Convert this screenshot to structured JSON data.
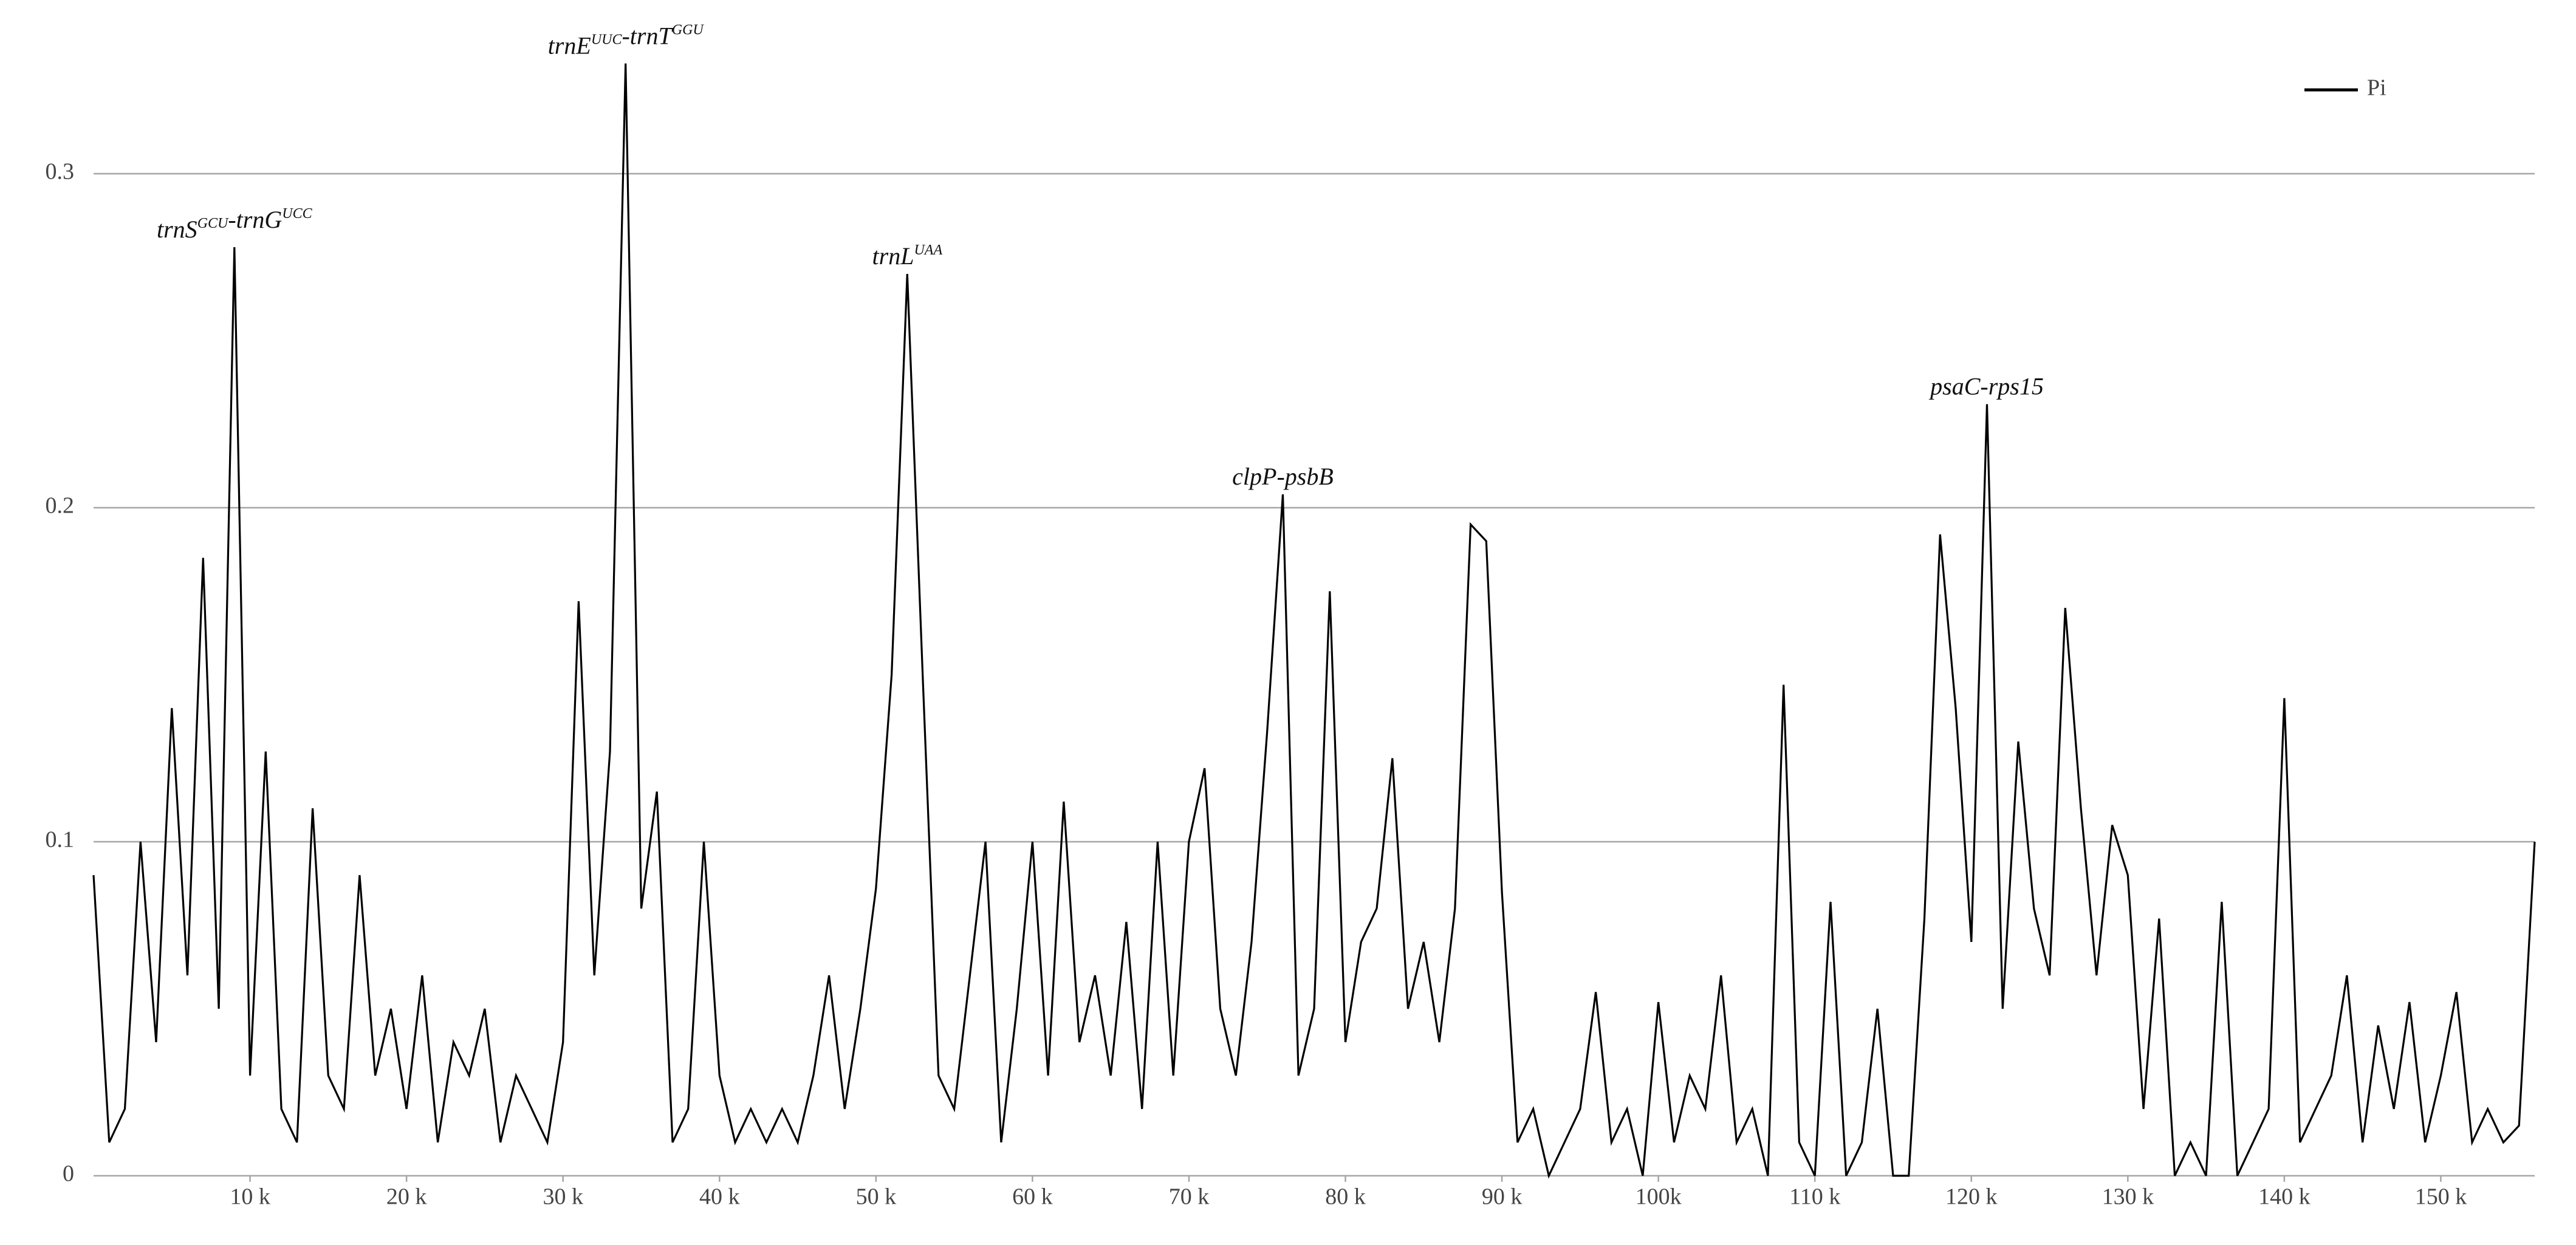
{
  "chart_data": {
    "type": "line",
    "x": [
      0,
      1,
      2,
      3,
      4,
      5,
      6,
      7,
      8,
      9,
      10,
      11,
      12,
      13,
      14,
      15,
      16,
      17,
      18,
      19,
      20,
      21,
      22,
      23,
      24,
      25,
      26,
      27,
      28,
      29,
      30,
      31,
      32,
      33,
      34,
      35,
      36,
      37,
      38,
      39,
      40,
      41,
      42,
      43,
      44,
      45,
      46,
      47,
      48,
      49,
      50,
      51,
      52,
      53,
      54,
      55,
      56,
      57,
      58,
      59,
      60,
      61,
      62,
      63,
      64,
      65,
      66,
      67,
      68,
      69,
      70,
      71,
      72,
      73,
      74,
      75,
      76,
      77,
      78,
      79,
      80,
      81,
      82,
      83,
      84,
      85,
      86,
      87,
      88,
      89,
      90,
      91,
      92,
      93,
      94,
      95,
      96,
      97,
      98,
      99,
      100,
      101,
      102,
      103,
      104,
      105,
      106,
      107,
      108,
      109,
      110,
      111,
      112,
      113,
      114,
      115,
      116,
      117,
      118,
      119,
      120,
      121,
      122,
      123,
      124,
      125,
      126,
      127,
      128,
      129,
      130,
      131,
      132,
      133,
      134,
      135,
      136,
      137,
      138,
      139,
      140,
      141,
      142,
      143,
      144,
      145,
      146,
      147,
      148,
      149,
      150,
      151,
      152,
      153,
      154,
      155,
      156
    ],
    "series": [
      {
        "name": "Pi",
        "color": "#000000",
        "values": [
          0.09,
          0.01,
          0.02,
          0.1,
          0.04,
          0.14,
          0.06,
          0.185,
          0.05,
          0.278,
          0.03,
          0.127,
          0.02,
          0.01,
          0.11,
          0.03,
          0.02,
          0.09,
          0.03,
          0.05,
          0.02,
          0.06,
          0.01,
          0.04,
          0.03,
          0.05,
          0.01,
          0.03,
          0.02,
          0.01,
          0.04,
          0.172,
          0.06,
          0.127,
          0.333,
          0.08,
          0.115,
          0.01,
          0.02,
          0.1,
          0.03,
          0.01,
          0.02,
          0.01,
          0.02,
          0.01,
          0.03,
          0.06,
          0.02,
          0.05,
          0.086,
          0.15,
          0.27,
          0.148,
          0.03,
          0.02,
          0.06,
          0.1,
          0.01,
          0.05,
          0.1,
          0.03,
          0.112,
          0.04,
          0.06,
          0.03,
          0.076,
          0.02,
          0.1,
          0.03,
          0.1,
          0.122,
          0.05,
          0.03,
          0.07,
          0.133,
          0.204,
          0.03,
          0.05,
          0.175,
          0.04,
          0.07,
          0.08,
          0.125,
          0.05,
          0.07,
          0.04,
          0.08,
          0.195,
          0.19,
          0.085,
          0.01,
          0.02,
          0,
          0.01,
          0.02,
          0.055,
          0.01,
          0.02,
          0,
          0.052,
          0.01,
          0.03,
          0.02,
          0.06,
          0.01,
          0.02,
          0,
          0.147,
          0.01,
          0,
          0.082,
          0,
          0.01,
          0.05,
          0,
          0,
          0.077,
          0.192,
          0.14,
          0.07,
          0.231,
          0.05,
          0.13,
          0.08,
          0.06,
          0.17,
          0.11,
          0.06,
          0.105,
          0.09,
          0.02,
          0.077,
          0,
          0.01,
          0,
          0.082,
          0,
          0.01,
          0.02,
          0.143,
          0.01,
          0.02,
          0.03,
          0.06,
          0.01,
          0.045,
          0.02,
          0.052,
          0.01,
          0.03,
          0.055,
          0.01,
          0.02,
          0.01,
          0.015,
          0.1
        ]
      }
    ],
    "xlim": [
      0,
      156
    ],
    "xticks": [
      {
        "value": 10,
        "label": "10 k"
      },
      {
        "value": 20,
        "label": "20 k"
      },
      {
        "value": 30,
        "label": "30 k"
      },
      {
        "value": 40,
        "label": "40 k"
      },
      {
        "value": 50,
        "label": "50 k"
      },
      {
        "value": 60,
        "label": "60 k"
      },
      {
        "value": 70,
        "label": "70 k"
      },
      {
        "value": 80,
        "label": "80 k"
      },
      {
        "value": 90,
        "label": "90 k"
      },
      {
        "value": 100,
        "label": "100k"
      },
      {
        "value": 110,
        "label": "110 k"
      },
      {
        "value": 120,
        "label": "120 k"
      },
      {
        "value": 130,
        "label": "130 k"
      },
      {
        "value": 140,
        "label": "140 k"
      },
      {
        "value": 150,
        "label": "150 k"
      }
    ],
    "ylim": [
      0,
      0.35
    ],
    "yticks": [
      0,
      0.1,
      0.2,
      0.3
    ],
    "grid": true,
    "legend": "upper right",
    "annotations": [
      {
        "x": 9,
        "y": 0.278,
        "parts": [
          [
            "trnS",
            "GCU"
          ],
          [
            "-trnG",
            "UCC"
          ]
        ]
      },
      {
        "x": 34,
        "y": 0.333,
        "parts": [
          [
            "trnE",
            "UUC"
          ],
          [
            "-trnT",
            "GGU"
          ]
        ]
      },
      {
        "x": 52,
        "y": 0.27,
        "parts": [
          [
            "trnL",
            "UAA"
          ]
        ]
      },
      {
        "x": 76,
        "y": 0.204,
        "parts": [
          [
            "clpP-psbB"
          ]
        ]
      },
      {
        "x": 121,
        "y": 0.231,
        "parts": [
          [
            "psaC-rps15"
          ]
        ]
      }
    ]
  }
}
